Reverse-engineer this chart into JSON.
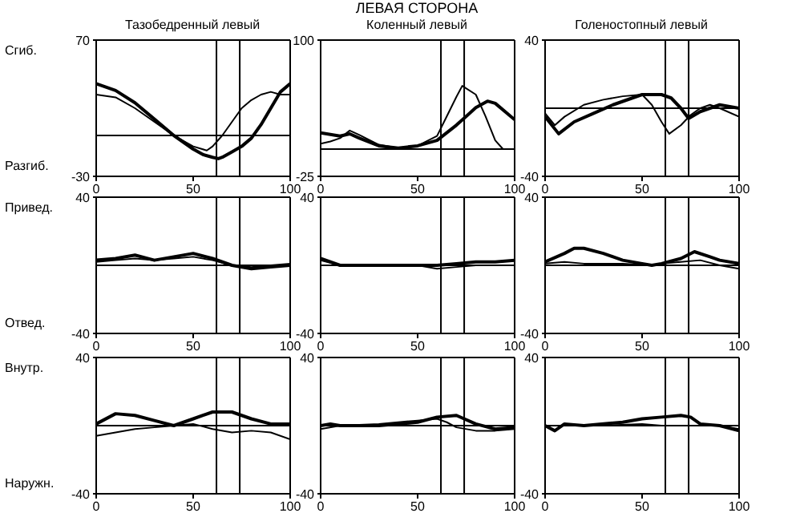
{
  "chart_data": [
    {
      "type": "line",
      "subtitle": "Тазобедренный левый",
      "annotations": [
        "Сгиб.",
        "Разгиб."
      ],
      "xlim": [
        0,
        100
      ],
      "xticks": [
        0,
        50,
        100
      ],
      "ylim": [
        -30,
        70
      ],
      "yticks": [
        -30,
        70
      ],
      "ref_lines": [
        {
          "axis": "y",
          "value": 0,
          "color": "#000000"
        },
        {
          "axis": "x",
          "value": 62,
          "color": "#000000"
        },
        {
          "axis": "x",
          "value": 74,
          "color": "#000000"
        }
      ],
      "series": [
        {
          "color": "#000000",
          "x": [
            0,
            10,
            20,
            30,
            40,
            50,
            55,
            60,
            63,
            65,
            70,
            75,
            80,
            85,
            90,
            95,
            100
          ],
          "values": [
            38,
            33,
            24,
            12,
            0,
            -10,
            -14,
            -16,
            -17,
            -16,
            -12,
            -8,
            -2,
            8,
            20,
            32,
            38
          ]
        },
        {
          "color": "#000000",
          "x": [
            0,
            10,
            20,
            30,
            40,
            50,
            57,
            60,
            65,
            70,
            75,
            80,
            85,
            90,
            95,
            100
          ],
          "values": [
            30,
            28,
            20,
            10,
            0,
            -8,
            -11,
            -8,
            0,
            10,
            20,
            26,
            30,
            32,
            30,
            30
          ]
        }
      ]
    },
    {
      "type": "line",
      "title": "ЛЕВАЯ СТОРОНА",
      "subtitle": "Коленный левый",
      "xlim": [
        0,
        100
      ],
      "xticks": [
        0,
        50,
        100
      ],
      "ylim": [
        -25,
        100
      ],
      "yticks": [
        -25,
        100
      ],
      "ref_lines": [
        {
          "axis": "y",
          "value": 0,
          "color": "#000000"
        },
        {
          "axis": "x",
          "value": 62,
          "color": "#000000"
        },
        {
          "axis": "x",
          "value": 74,
          "color": "#000000"
        }
      ],
      "series": [
        {
          "color": "#000000",
          "x": [
            0,
            10,
            15,
            20,
            30,
            40,
            50,
            60,
            70,
            75,
            80,
            86,
            90,
            100
          ],
          "values": [
            15,
            12,
            14,
            10,
            3,
            1,
            3,
            8,
            22,
            30,
            38,
            44,
            42,
            27
          ]
        },
        {
          "color": "#000000",
          "x": [
            0,
            5,
            10,
            15,
            20,
            30,
            40,
            50,
            60,
            65,
            70,
            73,
            80,
            85,
            90,
            94,
            100
          ],
          "values": [
            5,
            7,
            10,
            17,
            13,
            4,
            1,
            3,
            12,
            30,
            48,
            58,
            50,
            30,
            8,
            0,
            0
          ]
        }
      ]
    },
    {
      "type": "line",
      "subtitle": "Голеностопный левый",
      "xlim": [
        0,
        100
      ],
      "xticks": [
        0,
        50,
        100
      ],
      "ylim": [
        -40,
        40
      ],
      "yticks": [
        -40,
        40
      ],
      "ref_lines": [
        {
          "axis": "y",
          "value": 0,
          "color": "#000000"
        },
        {
          "axis": "x",
          "value": 62,
          "color": "#000000"
        },
        {
          "axis": "x",
          "value": 74,
          "color": "#000000"
        }
      ],
      "series": [
        {
          "color": "#000000",
          "x": [
            0,
            7,
            15,
            25,
            35,
            45,
            50,
            60,
            65,
            70,
            74,
            80,
            90,
            100
          ],
          "values": [
            -5,
            -15,
            -8,
            -3,
            2,
            6,
            8,
            8,
            6,
            0,
            -6,
            -2,
            2,
            0
          ]
        },
        {
          "color": "#000000",
          "x": [
            0,
            5,
            10,
            20,
            30,
            40,
            50,
            55,
            60,
            64,
            70,
            75,
            80,
            85,
            90,
            100
          ],
          "values": [
            -3,
            -10,
            -5,
            2,
            5,
            7,
            8,
            2,
            -8,
            -15,
            -10,
            -4,
            0,
            2,
            0,
            -5
          ]
        }
      ]
    },
    {
      "type": "line",
      "annotations": [
        "Привед.",
        "Отвед."
      ],
      "xlim": [
        0,
        100
      ],
      "xticks": [
        0,
        50,
        100
      ],
      "ylim": [
        -40,
        40
      ],
      "yticks": [
        -40,
        40
      ],
      "ref_lines": [
        {
          "axis": "y",
          "value": 0,
          "color": "#000000"
        },
        {
          "axis": "x",
          "value": 62,
          "color": "#000000"
        },
        {
          "axis": "x",
          "value": 74,
          "color": "#000000"
        }
      ],
      "series": [
        {
          "color": "#000000",
          "x": [
            0,
            10,
            20,
            30,
            40,
            50,
            60,
            70,
            80,
            90,
            100
          ],
          "values": [
            3,
            4,
            6,
            3,
            5,
            7,
            4,
            0,
            -2,
            -1,
            0
          ]
        },
        {
          "color": "#000000",
          "x": [
            0,
            10,
            20,
            30,
            40,
            50,
            60,
            70,
            80,
            90,
            100
          ],
          "values": [
            2,
            3,
            4,
            3,
            4,
            5,
            3,
            0,
            -1,
            0,
            1
          ]
        }
      ]
    },
    {
      "type": "line",
      "xlim": [
        0,
        100
      ],
      "xticks": [
        0,
        50,
        100
      ],
      "ylim": [
        -40,
        40
      ],
      "yticks": [
        -40,
        40
      ],
      "ref_lines": [
        {
          "axis": "y",
          "value": 0,
          "color": "#000000"
        },
        {
          "axis": "x",
          "value": 62,
          "color": "#000000"
        },
        {
          "axis": "x",
          "value": 74,
          "color": "#000000"
        }
      ],
      "series": [
        {
          "color": "#000000",
          "x": [
            0,
            10,
            20,
            40,
            60,
            70,
            80,
            90,
            100
          ],
          "values": [
            4,
            0,
            0,
            0,
            0,
            1,
            2,
            2,
            3
          ]
        },
        {
          "color": "#000000",
          "x": [
            0,
            10,
            30,
            50,
            60,
            70,
            80,
            90,
            100
          ],
          "values": [
            3,
            0,
            0,
            0,
            -2,
            -1,
            0,
            0,
            0
          ]
        }
      ]
    },
    {
      "type": "line",
      "xlim": [
        0,
        100
      ],
      "xticks": [
        0,
        50,
        100
      ],
      "ylim": [
        -40,
        40
      ],
      "yticks": [
        -40,
        40
      ],
      "ref_lines": [
        {
          "axis": "y",
          "value": 0,
          "color": "#000000"
        },
        {
          "axis": "x",
          "value": 62,
          "color": "#000000"
        },
        {
          "axis": "x",
          "value": 74,
          "color": "#000000"
        }
      ],
      "series": [
        {
          "color": "#000000",
          "x": [
            0,
            10,
            15,
            20,
            30,
            40,
            50,
            55,
            60,
            70,
            77,
            85,
            90,
            100
          ],
          "values": [
            2,
            7,
            10,
            10,
            7,
            3,
            1,
            0,
            1,
            4,
            8,
            5,
            3,
            1
          ]
        },
        {
          "color": "#000000",
          "x": [
            0,
            10,
            20,
            40,
            55,
            60,
            70,
            80,
            90,
            100
          ],
          "values": [
            1,
            2,
            1,
            1,
            0,
            1,
            2,
            3,
            0,
            -2
          ]
        }
      ]
    },
    {
      "type": "line",
      "annotations": [
        "Внутр.",
        "Наружн."
      ],
      "xlim": [
        0,
        100
      ],
      "xticks": [
        0,
        50,
        100
      ],
      "ylim": [
        -40,
        40
      ],
      "yticks": [
        -40,
        40
      ],
      "ref_lines": [
        {
          "axis": "y",
          "value": 0,
          "color": "#000000"
        },
        {
          "axis": "x",
          "value": 62,
          "color": "#000000"
        },
        {
          "axis": "x",
          "value": 74,
          "color": "#000000"
        }
      ],
      "series": [
        {
          "color": "#000000",
          "x": [
            0,
            10,
            20,
            30,
            40,
            50,
            60,
            70,
            80,
            90,
            100
          ],
          "values": [
            1,
            7,
            6,
            3,
            0,
            4,
            8,
            8,
            4,
            1,
            1
          ]
        },
        {
          "color": "#000000",
          "x": [
            0,
            10,
            20,
            30,
            40,
            50,
            60,
            70,
            80,
            90,
            100
          ],
          "values": [
            -6,
            -4,
            -2,
            -1,
            0,
            1,
            -2,
            -4,
            -3,
            -4,
            -8
          ]
        }
      ]
    },
    {
      "type": "line",
      "xlim": [
        0,
        100
      ],
      "xticks": [
        0,
        50,
        100
      ],
      "ylim": [
        -40,
        40
      ],
      "yticks": [
        -40,
        40
      ],
      "ref_lines": [
        {
          "axis": "y",
          "value": 0,
          "color": "#000000"
        },
        {
          "axis": "x",
          "value": 62,
          "color": "#000000"
        },
        {
          "axis": "x",
          "value": 74,
          "color": "#000000"
        }
      ],
      "series": [
        {
          "color": "#000000",
          "x": [
            0,
            5,
            10,
            30,
            50,
            60,
            70,
            80,
            90,
            100
          ],
          "values": [
            0,
            1,
            0,
            0,
            2,
            5,
            6,
            1,
            -2,
            -1
          ]
        },
        {
          "color": "#000000",
          "x": [
            0,
            10,
            30,
            50,
            60,
            65,
            70,
            80,
            90,
            100
          ],
          "values": [
            -2,
            0,
            1,
            3,
            4,
            2,
            -1,
            -3,
            -3,
            -2
          ]
        }
      ]
    },
    {
      "type": "line",
      "xlim": [
        0,
        100
      ],
      "xticks": [
        0,
        50,
        100
      ],
      "ylim": [
        -40,
        40
      ],
      "yticks": [
        -40,
        40
      ],
      "ref_lines": [
        {
          "axis": "y",
          "value": 0,
          "color": "#000000"
        },
        {
          "axis": "x",
          "value": 62,
          "color": "#000000"
        },
        {
          "axis": "x",
          "value": 74,
          "color": "#000000"
        }
      ],
      "series": [
        {
          "color": "#000000",
          "x": [
            0,
            5,
            10,
            20,
            40,
            50,
            60,
            70,
            75,
            80,
            90,
            100
          ],
          "values": [
            0,
            -3,
            1,
            0,
            2,
            4,
            5,
            6,
            5,
            1,
            0,
            -3
          ]
        },
        {
          "color": "#000000",
          "x": [
            0,
            10,
            30,
            50,
            60,
            70,
            90,
            100
          ],
          "values": [
            0,
            0,
            0,
            1,
            0,
            0,
            0,
            -2
          ]
        }
      ]
    }
  ]
}
